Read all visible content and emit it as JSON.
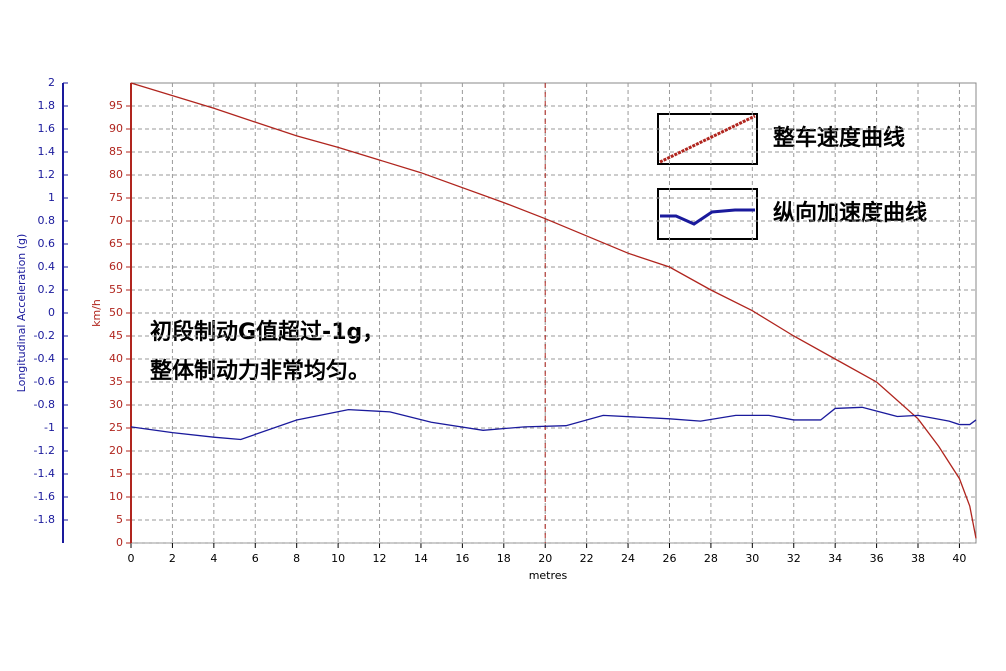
{
  "chart_data": {
    "type": "line",
    "xlabel": "metres",
    "ylabel": "Longitudinal Acceleration (g)",
    "y2label": "km/h",
    "xlim": [
      0,
      40.8
    ],
    "xticks": [
      0,
      2,
      4,
      6,
      8,
      10,
      12,
      14,
      16,
      18,
      20,
      22,
      24,
      26,
      28,
      30,
      32,
      34,
      36,
      38,
      40
    ],
    "ylim": [
      -2,
      2
    ],
    "yticks": [
      2,
      1.8,
      1.6,
      1.4,
      1.2,
      1,
      0.8,
      0.6,
      0.4,
      0.2,
      0,
      -0.2,
      -0.4,
      -0.6,
      -0.8,
      -1,
      -1.2,
      -1.4,
      -1.6,
      -1.8
    ],
    "y2lim": [
      0,
      100
    ],
    "y2ticks": [
      0,
      5,
      10,
      15,
      20,
      25,
      30,
      35,
      40,
      45,
      50,
      55,
      60,
      65,
      70,
      75,
      80,
      85,
      90,
      95
    ],
    "grid": true,
    "marker_x": 20,
    "annotation": [
      "初段制动G值超过-1g，",
      "整体制动力非常均匀。"
    ],
    "series": [
      {
        "name": "整车速度曲线",
        "color": "#b0251e",
        "axis": "y2",
        "x": [
          0,
          4,
          8,
          10,
          14,
          18,
          20,
          24,
          26,
          28,
          30,
          32,
          34,
          36,
          38,
          39,
          40,
          40.5,
          40.8
        ],
        "values": [
          100,
          94.5,
          88.5,
          86,
          80.5,
          74,
          70.5,
          63,
          60,
          55,
          50.5,
          45,
          40,
          35,
          27,
          21,
          14,
          8,
          1
        ]
      },
      {
        "name": "纵向加速度曲线",
        "color": "#1a1a9c",
        "axis": "y",
        "x": [
          0,
          2,
          4,
          5.3,
          8,
          10.5,
          12.5,
          14.5,
          17,
          19,
          21,
          22.8,
          26,
          27.5,
          29.2,
          30.8,
          32,
          33.3,
          34,
          35.3,
          37,
          38,
          39.5,
          40,
          40.5,
          40.8
        ],
        "values": [
          -0.99,
          -1.04,
          -1.08,
          -1.1,
          -0.93,
          -0.84,
          -0.86,
          -0.95,
          -1.02,
          -0.99,
          -0.98,
          -0.89,
          -0.92,
          -0.94,
          -0.89,
          -0.89,
          -0.93,
          -0.93,
          -0.83,
          -0.82,
          -0.9,
          -0.89,
          -0.94,
          -0.97,
          -0.97,
          -0.93
        ]
      }
    ]
  }
}
